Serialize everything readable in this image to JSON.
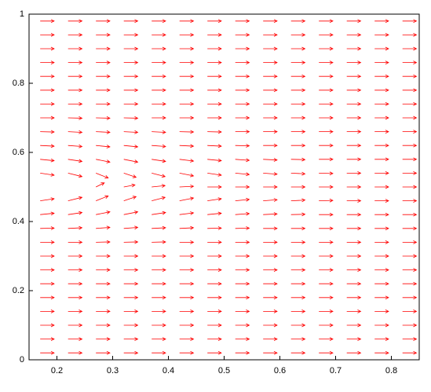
{
  "chart_data": {
    "type": "quiver",
    "color": "#ff0000",
    "xlim": [
      0.15,
      0.85
    ],
    "ylim": [
      0,
      1
    ],
    "xticks": [
      0.2,
      0.3,
      0.4,
      0.5,
      0.6,
      0.7,
      0.8
    ],
    "yticks": [
      0,
      0.2,
      0.4,
      0.6,
      0.8,
      1
    ],
    "x": [
      0.17,
      0.22,
      0.27,
      0.32,
      0.37,
      0.42,
      0.47,
      0.52,
      0.57,
      0.62,
      0.67,
      0.72,
      0.77,
      0.82
    ],
    "rows": [
      {
        "y": 0.02,
        "u": [
          0.025,
          0.025,
          0.025,
          0.025,
          0.025,
          0.025,
          0.025,
          0.025,
          0.025,
          0.025,
          0.025,
          0.025,
          0.025,
          0.025
        ],
        "v": [
          0,
          0,
          0,
          0,
          0,
          0,
          0,
          0,
          0,
          0,
          0,
          0,
          0,
          0
        ]
      },
      {
        "y": 0.06,
        "u": [
          0.025,
          0.025,
          0.025,
          0.025,
          0.025,
          0.025,
          0.025,
          0.025,
          0.025,
          0.025,
          0.025,
          0.025,
          0.025,
          0.025
        ],
        "v": [
          0,
          0,
          0,
          0,
          0,
          0,
          0,
          0,
          0,
          0,
          0,
          0,
          0,
          0
        ]
      },
      {
        "y": 0.1,
        "u": [
          0.025,
          0.025,
          0.025,
          0.025,
          0.025,
          0.025,
          0.025,
          0.025,
          0.025,
          0.025,
          0.025,
          0.025,
          0.025,
          0.025
        ],
        "v": [
          0,
          0,
          0,
          0,
          0,
          0,
          0,
          0,
          0,
          0,
          0,
          0,
          0,
          0
        ]
      },
      {
        "y": 0.14,
        "u": [
          0.025,
          0.025,
          0.025,
          0.025,
          0.025,
          0.025,
          0.025,
          0.025,
          0.025,
          0.025,
          0.025,
          0.025,
          0.025,
          0.025
        ],
        "v": [
          0,
          0,
          0,
          0,
          0,
          0,
          0,
          0,
          0,
          0,
          0,
          0,
          0,
          0
        ]
      },
      {
        "y": 0.18,
        "u": [
          0.025,
          0.025,
          0.025,
          0.025,
          0.025,
          0.025,
          0.025,
          0.025,
          0.025,
          0.025,
          0.025,
          0.025,
          0.025,
          0.025
        ],
        "v": [
          0,
          0,
          0,
          0,
          0,
          0,
          0,
          0,
          0,
          0,
          0,
          0,
          0,
          0
        ]
      },
      {
        "y": 0.22,
        "u": [
          0.025,
          0.025,
          0.025,
          0.025,
          0.025,
          0.025,
          0.025,
          0.025,
          0.025,
          0.025,
          0.025,
          0.025,
          0.025,
          0.025
        ],
        "v": [
          0,
          0,
          0,
          0,
          0,
          0,
          0,
          0,
          0,
          0,
          0,
          0,
          0,
          0
        ]
      },
      {
        "y": 0.26,
        "u": [
          0.025,
          0.025,
          0.025,
          0.025,
          0.025,
          0.025,
          0.025,
          0.025,
          0.025,
          0.025,
          0.025,
          0.025,
          0.025,
          0.025
        ],
        "v": [
          0,
          0,
          0,
          0,
          0,
          0,
          0,
          0,
          0,
          0,
          0,
          0,
          0,
          0
        ]
      },
      {
        "y": 0.3,
        "u": [
          0.025,
          0.025,
          0.025,
          0.025,
          0.025,
          0.025,
          0.025,
          0.025,
          0.025,
          0.025,
          0.025,
          0.025,
          0.025,
          0.025
        ],
        "v": [
          0,
          0,
          0,
          0,
          0,
          0,
          0,
          0,
          0,
          0,
          0,
          0,
          0,
          0
        ]
      },
      {
        "y": 0.34,
        "u": [
          0.025,
          0.025,
          0.025,
          0.025,
          0.025,
          0.025,
          0.025,
          0.025,
          0.025,
          0.025,
          0.025,
          0.025,
          0.025,
          0.025
        ],
        "v": [
          0,
          0,
          0.001,
          0.001,
          0.001,
          0,
          0,
          0,
          0,
          0,
          0,
          0,
          0,
          0
        ]
      },
      {
        "y": 0.38,
        "u": [
          0.025,
          0.025,
          0.025,
          0.025,
          0.025,
          0.025,
          0.025,
          0.025,
          0.025,
          0.025,
          0.025,
          0.025,
          0.025,
          0.025
        ],
        "v": [
          0.001,
          0.002,
          0.003,
          0.003,
          0.002,
          0.002,
          0.001,
          0.001,
          0,
          0,
          0,
          0,
          0,
          0
        ]
      },
      {
        "y": 0.42,
        "u": [
          0.025,
          0.025,
          0.025,
          0.025,
          0.025,
          0.025,
          0.025,
          0.025,
          0.025,
          0.025,
          0.025,
          0.025,
          0.025,
          0.025
        ],
        "v": [
          0.004,
          0.006,
          0.008,
          0.008,
          0.006,
          0.005,
          0.004,
          0.003,
          0.002,
          0.001,
          0,
          0,
          0,
          0
        ]
      },
      {
        "y": 0.46,
        "u": [
          0.025,
          0.025,
          0.022,
          0.022,
          0.024,
          0.025,
          0.025,
          0.025,
          0.025,
          0.025,
          0.025,
          0.025,
          0.025,
          0.025
        ],
        "v": [
          0.006,
          0.01,
          0.014,
          0.012,
          0.01,
          0.008,
          0.006,
          0.004,
          0.003,
          0.002,
          0.001,
          0,
          0,
          0
        ]
      },
      {
        "y": 0.5,
        "u": [
          null,
          null,
          0.015,
          0.02,
          0.024,
          0.025,
          0.025,
          0.025,
          0.025,
          0.025,
          0.025,
          0.025,
          0.025,
          0.025
        ],
        "v": [
          null,
          null,
          0.012,
          0.006,
          0.004,
          0.002,
          0,
          0,
          0,
          0,
          0,
          0,
          0,
          0
        ]
      },
      {
        "y": 0.54,
        "u": [
          0.025,
          0.025,
          0.022,
          0.022,
          0.024,
          0.025,
          0.025,
          0.025,
          0.025,
          0.025,
          0.025,
          0.025,
          0.025,
          0.025
        ],
        "v": [
          -0.006,
          -0.01,
          -0.014,
          -0.012,
          -0.01,
          -0.008,
          -0.006,
          -0.004,
          -0.003,
          -0.002,
          -0.001,
          0,
          0,
          0
        ]
      },
      {
        "y": 0.58,
        "u": [
          0.025,
          0.025,
          0.025,
          0.025,
          0.025,
          0.025,
          0.025,
          0.025,
          0.025,
          0.025,
          0.025,
          0.025,
          0.025,
          0.025
        ],
        "v": [
          -0.004,
          -0.006,
          -0.008,
          -0.008,
          -0.006,
          -0.005,
          -0.004,
          -0.003,
          -0.002,
          -0.001,
          0,
          0,
          0,
          0
        ]
      },
      {
        "y": 0.62,
        "u": [
          0.025,
          0.025,
          0.025,
          0.025,
          0.025,
          0.025,
          0.025,
          0.025,
          0.025,
          0.025,
          0.025,
          0.025,
          0.025,
          0.025
        ],
        "v": [
          -0.002,
          -0.003,
          -0.004,
          -0.004,
          -0.003,
          -0.002,
          -0.002,
          -0.001,
          0,
          0,
          0,
          0,
          0,
          0
        ]
      },
      {
        "y": 0.66,
        "u": [
          0.025,
          0.025,
          0.025,
          0.025,
          0.025,
          0.025,
          0.025,
          0.025,
          0.025,
          0.025,
          0.025,
          0.025,
          0.025,
          0.025
        ],
        "v": [
          -0.001,
          -0.002,
          -0.002,
          -0.002,
          -0.002,
          -0.001,
          -0.001,
          0,
          0,
          0,
          0,
          0,
          0,
          0
        ]
      },
      {
        "y": 0.7,
        "u": [
          0.025,
          0.025,
          0.025,
          0.025,
          0.025,
          0.025,
          0.025,
          0.025,
          0.025,
          0.025,
          0.025,
          0.025,
          0.025,
          0.025
        ],
        "v": [
          0,
          -0.001,
          -0.001,
          -0.001,
          0,
          0,
          0,
          0,
          0,
          0,
          0,
          0,
          0,
          0
        ]
      },
      {
        "y": 0.74,
        "u": [
          0.025,
          0.025,
          0.025,
          0.025,
          0.025,
          0.025,
          0.025,
          0.025,
          0.025,
          0.025,
          0.025,
          0.025,
          0.025,
          0.025
        ],
        "v": [
          0,
          0,
          0,
          0,
          0,
          0,
          0,
          0,
          0,
          0,
          0,
          0,
          0,
          0
        ]
      },
      {
        "y": 0.78,
        "u": [
          0.025,
          0.025,
          0.025,
          0.025,
          0.025,
          0.025,
          0.025,
          0.025,
          0.025,
          0.025,
          0.025,
          0.025,
          0.025,
          0.025
        ],
        "v": [
          0,
          0,
          0,
          0,
          0,
          0,
          0,
          0,
          0,
          0,
          0,
          0,
          0,
          0
        ]
      },
      {
        "y": 0.82,
        "u": [
          0.025,
          0.025,
          0.025,
          0.025,
          0.025,
          0.025,
          0.025,
          0.025,
          0.025,
          0.025,
          0.025,
          0.025,
          0.025,
          0.025
        ],
        "v": [
          0,
          0,
          0,
          0,
          0,
          0,
          0,
          0,
          0,
          0,
          0,
          0,
          0,
          0
        ]
      },
      {
        "y": 0.86,
        "u": [
          0.025,
          0.025,
          0.025,
          0.025,
          0.025,
          0.025,
          0.025,
          0.025,
          0.025,
          0.025,
          0.025,
          0.025,
          0.025,
          0.025
        ],
        "v": [
          0,
          0,
          0,
          0,
          0,
          0,
          0,
          0,
          0,
          0,
          0,
          0,
          0,
          0
        ]
      },
      {
        "y": 0.9,
        "u": [
          0.025,
          0.025,
          0.025,
          0.025,
          0.025,
          0.025,
          0.025,
          0.025,
          0.025,
          0.025,
          0.025,
          0.025,
          0.025,
          0.025
        ],
        "v": [
          0,
          0,
          0,
          0,
          0,
          0,
          0,
          0,
          0,
          0,
          0,
          0,
          0,
          0
        ]
      },
      {
        "y": 0.94,
        "u": [
          0.025,
          0.025,
          0.025,
          0.025,
          0.025,
          0.025,
          0.025,
          0.025,
          0.025,
          0.025,
          0.025,
          0.025,
          0.025,
          0.025
        ],
        "v": [
          0,
          0,
          0,
          0,
          0,
          0,
          0,
          0,
          0,
          0,
          0,
          0,
          0,
          0
        ]
      },
      {
        "y": 0.98,
        "u": [
          0.025,
          0.025,
          0.025,
          0.025,
          0.025,
          0.025,
          0.025,
          0.025,
          0.025,
          0.025,
          0.025,
          0.025,
          0.025,
          0.025
        ],
        "v": [
          0,
          0,
          0,
          0,
          0,
          0,
          0,
          0,
          0,
          0,
          0,
          0,
          0,
          0
        ]
      }
    ]
  }
}
